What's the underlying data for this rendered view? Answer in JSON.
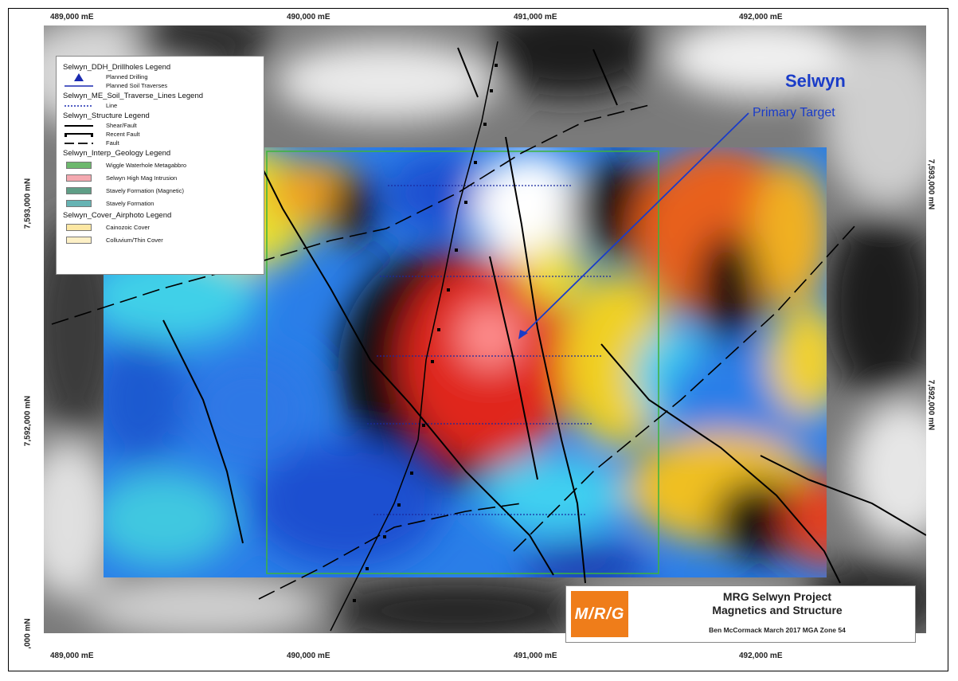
{
  "map": {
    "ticks_top": [
      "489,000 mE",
      "490,000 mE",
      "491,000 mE",
      "492,000 mE"
    ],
    "ticks_bottom": [
      "489,000 mE",
      "490,000 mE",
      "491,000 mE",
      "492,000 mE"
    ],
    "ticks_left": [
      "7,593,000 mN",
      "7,592,000 mN",
      ",000 mN"
    ],
    "ticks_right": [
      "7,593,000 mN",
      "7,592,000 mN"
    ]
  },
  "legend": {
    "drillholes": {
      "heading": "Selwyn_DDH_Drillholes Legend",
      "items": [
        "Planned Drilling",
        "Planned Soil Traverses"
      ]
    },
    "soil_lines": {
      "heading": "Selwyn_ME_Soil_Traverse_Lines Legend",
      "items": [
        "Line"
      ]
    },
    "structure": {
      "heading": "Selwyn_Structure Legend",
      "items": [
        "Shear/Fault",
        "Recent Fault",
        "Fault"
      ]
    },
    "geology": {
      "heading": "Selwyn_Interp_Geology Legend",
      "items": [
        {
          "label": "Wiggle Waterhole Metagabbro",
          "color": "#6db86d"
        },
        {
          "label": "Selwyn High Mag Intrusion",
          "color": "#f4a9b0"
        },
        {
          "label": "Stavely Formation (Magnetic)",
          "color": "#5f9e86"
        },
        {
          "label": "Stavely Formation",
          "color": "#66b3b3"
        }
      ]
    },
    "cover": {
      "heading": "Selwyn_Cover_Airphoto Legend",
      "items": [
        {
          "label": "Cainozoic Cover",
          "color": "#fce7a3"
        },
        {
          "label": "Colluvium/Thin Cover",
          "color": "#fdf0c6"
        }
      ]
    }
  },
  "callout": {
    "title": "Selwyn",
    "subtitle": "Primary Target"
  },
  "title_block": {
    "logo_text": "M/R/G",
    "title_line1": "MRG Selwyn Project",
    "title_line2": "Magnetics and Structure",
    "author_line": "Ben McCormack  March 2017  MGA Zone 54"
  },
  "colors": {
    "callout_blue": "#1a3cc8",
    "logo_orange": "#ef7d1a",
    "prospect_outline": "#3cb43c"
  }
}
